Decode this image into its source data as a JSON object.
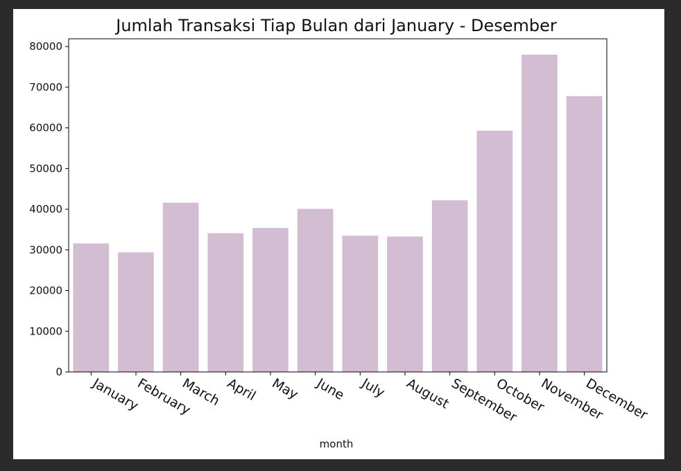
{
  "chart_data": {
    "type": "bar",
    "title": "Jumlah Transaksi Tiap Bulan dari January - Desember",
    "xlabel": "month",
    "ylabel": "",
    "categories": [
      "January",
      "February",
      "March",
      "April",
      "May",
      "June",
      "July",
      "August",
      "September",
      "October",
      "November",
      "December"
    ],
    "values": [
      31600,
      29400,
      41600,
      34100,
      35400,
      40100,
      33500,
      33300,
      42200,
      59300,
      78000,
      67800
    ],
    "ylim": [
      0,
      81900
    ],
    "yticks": [
      0,
      10000,
      20000,
      30000,
      40000,
      50000,
      60000,
      70000,
      80000
    ],
    "ytick_labels": [
      "0",
      "10000",
      "20000",
      "30000",
      "40000",
      "50000",
      "60000",
      "70000",
      "80000"
    ],
    "bar_color": "#d3bdd3",
    "grid": false,
    "legend": "none"
  }
}
